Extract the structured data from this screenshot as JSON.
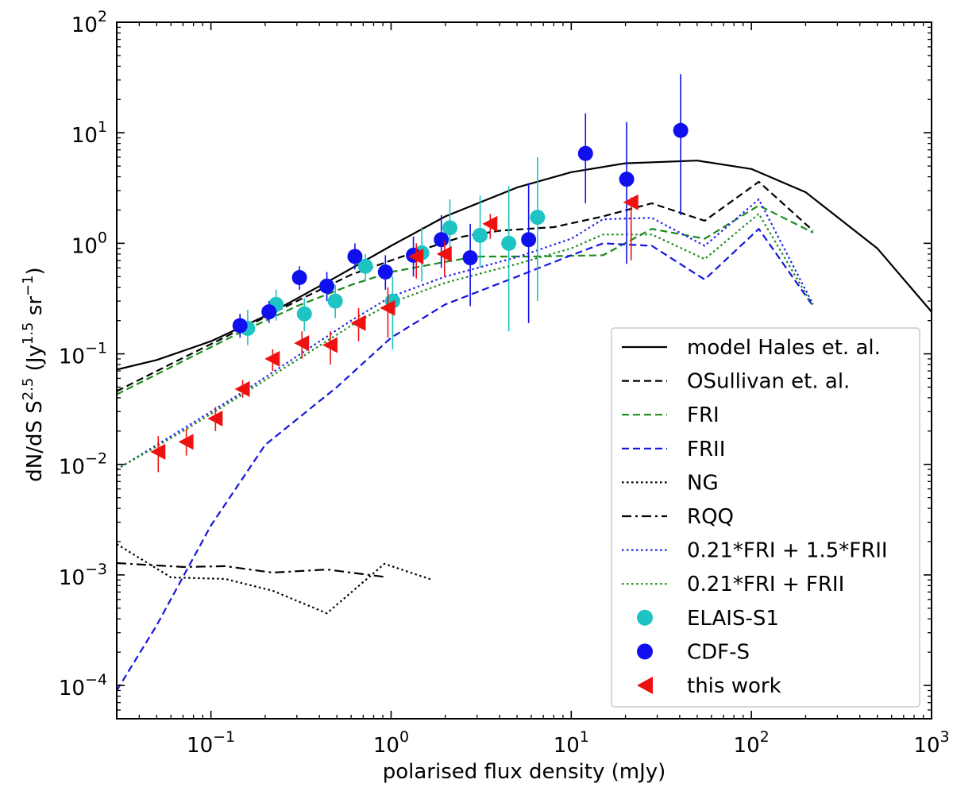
{
  "chart_data": {
    "type": "line",
    "xscale": "log",
    "yscale": "log",
    "xlim": [
      0.03,
      1000
    ],
    "ylim": [
      5e-05,
      100
    ],
    "xlabel": "polarised flux density (mJy)",
    "ylabel_parts": {
      "base": "dN/dS S",
      "sup1": "2.5",
      "mid": " (Jy",
      "sup2": "1.5",
      "mid2": " sr",
      "sup3": "−1",
      "end": ")"
    },
    "xticks": [
      {
        "value": 0.1,
        "base": "10",
        "exp": "−1"
      },
      {
        "value": 1,
        "base": "10",
        "exp": "0"
      },
      {
        "value": 10,
        "base": "10",
        "exp": "1"
      },
      {
        "value": 100,
        "base": "10",
        "exp": "2"
      },
      {
        "value": 1000,
        "base": "10",
        "exp": "3"
      }
    ],
    "yticks": [
      {
        "value": 0.0001,
        "base": "10",
        "exp": "−4"
      },
      {
        "value": 0.001,
        "base": "10",
        "exp": "−3"
      },
      {
        "value": 0.01,
        "base": "10",
        "exp": "−2"
      },
      {
        "value": 0.1,
        "base": "10",
        "exp": "−1"
      },
      {
        "value": 1,
        "base": "10",
        "exp": "0"
      },
      {
        "value": 10,
        "base": "10",
        "exp": "1"
      },
      {
        "value": 100,
        "base": "10",
        "exp": "2"
      }
    ],
    "lines": [
      {
        "name": "model Hales et. al.",
        "color": "#000000",
        "style": "solid",
        "x": [
          0.03,
          0.05,
          0.1,
          0.2,
          0.5,
          1,
          2,
          5,
          10,
          20,
          50,
          100,
          200,
          500,
          1000
        ],
        "y": [
          0.072,
          0.088,
          0.13,
          0.22,
          0.5,
          0.95,
          1.75,
          3.2,
          4.4,
          5.3,
          5.6,
          4.7,
          2.9,
          0.9,
          0.24
        ]
      },
      {
        "name": "OSullivan et. al.",
        "color": "#000000",
        "style": "dashed",
        "x": [
          0.03,
          0.07,
          0.15,
          0.3,
          0.6,
          1.0,
          1.5,
          2.5,
          4,
          8,
          15,
          28,
          55,
          110,
          220
        ],
        "y": [
          0.046,
          0.092,
          0.17,
          0.3,
          0.52,
          0.7,
          0.88,
          1.15,
          1.3,
          1.4,
          1.75,
          2.3,
          1.6,
          3.6,
          1.3
        ]
      },
      {
        "name": "FRI",
        "color": "#1a8a1a",
        "style": "dashed",
        "x": [
          0.03,
          0.07,
          0.15,
          0.3,
          0.6,
          1.0,
          2,
          3,
          6,
          15,
          28,
          55,
          110,
          220
        ],
        "y": [
          0.043,
          0.086,
          0.16,
          0.27,
          0.42,
          0.55,
          0.68,
          0.76,
          0.76,
          0.78,
          1.35,
          1.1,
          2.2,
          1.25
        ]
      },
      {
        "name": "FRII",
        "color": "#1515dd",
        "style": "dashed",
        "x": [
          0.03,
          0.05,
          0.1,
          0.2,
          0.5,
          1.0,
          2,
          5,
          10,
          15,
          28,
          55,
          110,
          220
        ],
        "y": [
          9e-05,
          0.00035,
          0.0028,
          0.015,
          0.05,
          0.14,
          0.28,
          0.5,
          0.78,
          1.0,
          0.95,
          0.47,
          1.35,
          0.27
        ]
      },
      {
        "name": "NG",
        "color": "#000000",
        "style": "dotted",
        "x": [
          0.03,
          0.06,
          0.12,
          0.22,
          0.44,
          0.92,
          1.7
        ],
        "y": [
          0.0019,
          0.00095,
          0.00092,
          0.00072,
          0.00045,
          0.00126,
          0.0009
        ]
      },
      {
        "name": "RQQ",
        "color": "#000000",
        "style": "dashdot",
        "x": [
          0.03,
          0.07,
          0.12,
          0.22,
          0.44,
          0.92
        ],
        "y": [
          0.00128,
          0.00118,
          0.0012,
          0.00105,
          0.00112,
          0.00096
        ]
      },
      {
        "name": "0.21*FRI + 1.5*FRII",
        "color": "#2222ee",
        "style": "dotted",
        "x": [
          0.03,
          0.07,
          0.15,
          0.3,
          0.6,
          1.0,
          2,
          5,
          10,
          15,
          28,
          55,
          110,
          220
        ],
        "y": [
          0.009,
          0.021,
          0.045,
          0.095,
          0.2,
          0.33,
          0.5,
          0.75,
          1.1,
          1.65,
          1.7,
          0.95,
          2.5,
          0.28
        ]
      },
      {
        "name": "0.21*FRI + FRII",
        "color": "#1a8a1a",
        "style": "dotted",
        "x": [
          0.03,
          0.07,
          0.15,
          0.3,
          0.6,
          1.0,
          2,
          5,
          10,
          15,
          28,
          55,
          110,
          220
        ],
        "y": [
          0.009,
          0.02,
          0.043,
          0.088,
          0.18,
          0.29,
          0.44,
          0.65,
          0.9,
          1.2,
          1.2,
          0.72,
          1.85,
          0.27
        ]
      }
    ],
    "scatter": [
      {
        "name": "ELAIS-S1",
        "color": "#1ec3c3",
        "marker": "circle",
        "points": [
          {
            "x": 0.16,
            "y": 0.17,
            "lo": 0.12,
            "hi": 0.25
          },
          {
            "x": 0.23,
            "y": 0.28,
            "lo": 0.2,
            "hi": 0.38
          },
          {
            "x": 0.33,
            "y": 0.23,
            "lo": 0.16,
            "hi": 0.32
          },
          {
            "x": 0.49,
            "y": 0.3,
            "lo": 0.21,
            "hi": 0.42
          },
          {
            "x": 0.72,
            "y": 0.62,
            "lo": 0.45,
            "hi": 0.8
          },
          {
            "x": 1.02,
            "y": 0.3,
            "lo": 0.11,
            "hi": 0.5
          },
          {
            "x": 1.48,
            "y": 0.82,
            "lo": 0.45,
            "hi": 1.4
          },
          {
            "x": 2.12,
            "y": 1.38,
            "lo": 0.8,
            "hi": 2.5
          },
          {
            "x": 3.12,
            "y": 1.18,
            "lo": 0.6,
            "hi": 2.7
          },
          {
            "x": 4.5,
            "y": 1.0,
            "lo": 0.16,
            "hi": 3.3
          },
          {
            "x": 6.5,
            "y": 1.72,
            "lo": 0.3,
            "hi": 6.0
          }
        ]
      },
      {
        "name": "CDF-S",
        "color": "#1010ee",
        "marker": "circle",
        "points": [
          {
            "x": 0.145,
            "y": 0.18,
            "lo": 0.14,
            "hi": 0.23
          },
          {
            "x": 0.21,
            "y": 0.24,
            "lo": 0.19,
            "hi": 0.3
          },
          {
            "x": 0.31,
            "y": 0.49,
            "lo": 0.38,
            "hi": 0.62
          },
          {
            "x": 0.44,
            "y": 0.41,
            "lo": 0.3,
            "hi": 0.55
          },
          {
            "x": 0.63,
            "y": 0.76,
            "lo": 0.58,
            "hi": 1.0
          },
          {
            "x": 0.93,
            "y": 0.55,
            "lo": 0.38,
            "hi": 0.78
          },
          {
            "x": 1.33,
            "y": 0.78,
            "lo": 0.5,
            "hi": 1.15
          },
          {
            "x": 1.9,
            "y": 1.08,
            "lo": 0.6,
            "hi": 1.8
          },
          {
            "x": 2.75,
            "y": 0.74,
            "lo": 0.27,
            "hi": 1.5
          },
          {
            "x": 5.8,
            "y": 1.08,
            "lo": 0.19,
            "hi": 3.5
          },
          {
            "x": 12.0,
            "y": 6.5,
            "lo": 2.3,
            "hi": 15.0
          },
          {
            "x": 20.3,
            "y": 3.8,
            "lo": 0.65,
            "hi": 12.5
          },
          {
            "x": 40.5,
            "y": 10.5,
            "lo": 1.8,
            "hi": 34.0
          }
        ]
      },
      {
        "name": "this work",
        "color": "#ee1111",
        "marker": "triangle-left",
        "points": [
          {
            "x": 0.051,
            "y": 0.013,
            "lo": 0.0085,
            "hi": 0.018
          },
          {
            "x": 0.073,
            "y": 0.016,
            "lo": 0.012,
            "hi": 0.021
          },
          {
            "x": 0.106,
            "y": 0.026,
            "lo": 0.02,
            "hi": 0.033
          },
          {
            "x": 0.15,
            "y": 0.048,
            "lo": 0.04,
            "hi": 0.058
          },
          {
            "x": 0.22,
            "y": 0.09,
            "lo": 0.07,
            "hi": 0.11
          },
          {
            "x": 0.32,
            "y": 0.125,
            "lo": 0.09,
            "hi": 0.16
          },
          {
            "x": 0.46,
            "y": 0.12,
            "lo": 0.08,
            "hi": 0.16
          },
          {
            "x": 0.66,
            "y": 0.19,
            "lo": 0.13,
            "hi": 0.26
          },
          {
            "x": 0.96,
            "y": 0.26,
            "lo": 0.14,
            "hi": 0.4
          },
          {
            "x": 1.38,
            "y": 0.76,
            "lo": 0.48,
            "hi": 1.0
          },
          {
            "x": 1.98,
            "y": 0.8,
            "lo": 0.5,
            "hi": 1.05
          },
          {
            "x": 3.55,
            "y": 1.5,
            "lo": 1.1,
            "hi": 1.85
          },
          {
            "x": 21.5,
            "y": 2.35,
            "lo": 0.7,
            "hi": 2.6
          }
        ]
      }
    ],
    "legend": {
      "position": "lower-right",
      "entries": [
        {
          "label": "model Hales et. al.",
          "kind": "line",
          "color": "#000000",
          "style": "solid"
        },
        {
          "label": "OSullivan et. al.",
          "kind": "line",
          "color": "#000000",
          "style": "dashed"
        },
        {
          "label": "FRI",
          "kind": "line",
          "color": "#1a8a1a",
          "style": "dashed"
        },
        {
          "label": "FRII",
          "kind": "line",
          "color": "#1515dd",
          "style": "dashed"
        },
        {
          "label": "NG",
          "kind": "line",
          "color": "#000000",
          "style": "dotted"
        },
        {
          "label": "RQQ",
          "kind": "line",
          "color": "#000000",
          "style": "dashdot"
        },
        {
          "label": "0.21*FRI + 1.5*FRII",
          "kind": "line",
          "color": "#2222ee",
          "style": "dotted"
        },
        {
          "label": "0.21*FRI + FRII",
          "kind": "line",
          "color": "#1a8a1a",
          "style": "dotted"
        },
        {
          "label": "ELAIS-S1",
          "kind": "circle",
          "color": "#1ec3c3"
        },
        {
          "label": "CDF-S",
          "kind": "circle",
          "color": "#1010ee"
        },
        {
          "label": "this work",
          "kind": "triangle-left",
          "color": "#ee1111"
        }
      ]
    }
  }
}
